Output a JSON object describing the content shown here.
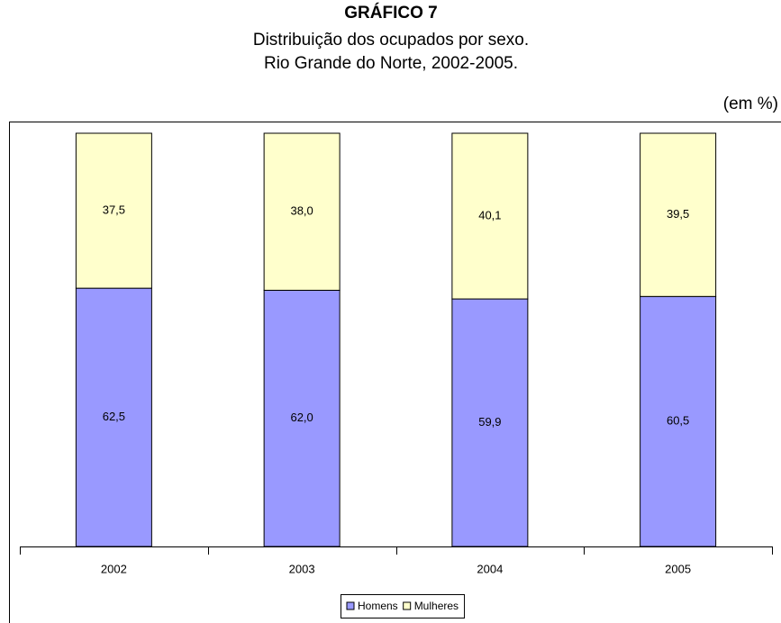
{
  "chart_data": {
    "type": "stacked_bar",
    "title": "GRÁFICO 7",
    "subtitle": [
      "Distribuição dos ocupados por sexo.",
      "Rio Grande do Norte, 2002-2005."
    ],
    "unit_label": "(em %)",
    "categories": [
      "2002",
      "2003",
      "2004",
      "2005"
    ],
    "series": [
      {
        "name": "Homens",
        "color": "#9999ff",
        "values": [
          62.5,
          62.0,
          59.9,
          60.5
        ],
        "value_labels": [
          "62,5",
          "62,0",
          "59,9",
          "60,5"
        ]
      },
      {
        "name": "Mulheres",
        "color": "#ffffcc",
        "values": [
          37.5,
          38.0,
          40.1,
          39.5
        ],
        "value_labels": [
          "37,5",
          "38,0",
          "40,1",
          "39,5"
        ]
      }
    ],
    "ylim": [
      0,
      100
    ],
    "legend": "bottom"
  }
}
